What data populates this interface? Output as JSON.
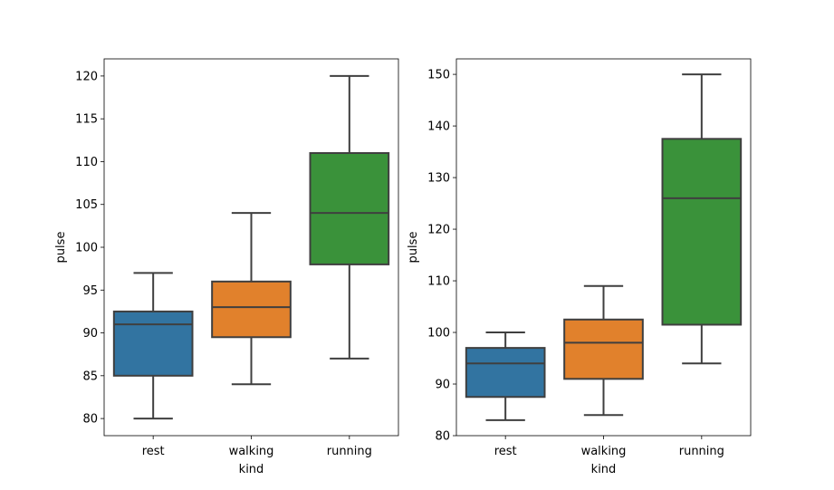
{
  "chart_data": [
    {
      "type": "box",
      "xlabel": "kind",
      "ylabel": "pulse",
      "categories": [
        "rest",
        "walking",
        "running"
      ],
      "colors": [
        "#3274a1",
        "#e1812c",
        "#3a923a"
      ],
      "ylim": [
        78,
        122
      ],
      "yticks": [
        80,
        85,
        90,
        95,
        100,
        105,
        110,
        115,
        120
      ],
      "boxes": [
        {
          "min": 80,
          "q1": 85,
          "median": 91,
          "q3": 92.5,
          "max": 97
        },
        {
          "min": 84,
          "q1": 89.5,
          "median": 93,
          "q3": 96,
          "max": 104
        },
        {
          "min": 87,
          "q1": 98,
          "median": 104,
          "q3": 111,
          "max": 120
        }
      ]
    },
    {
      "type": "box",
      "xlabel": "kind",
      "ylabel": "pulse",
      "categories": [
        "rest",
        "walking",
        "running"
      ],
      "colors": [
        "#3274a1",
        "#e1812c",
        "#3a923a"
      ],
      "ylim": [
        80,
        153
      ],
      "yticks": [
        80,
        90,
        100,
        110,
        120,
        130,
        140,
        150
      ],
      "boxes": [
        {
          "min": 83,
          "q1": 87.5,
          "median": 94,
          "q3": 97,
          "max": 100
        },
        {
          "min": 84,
          "q1": 91,
          "median": 98,
          "q3": 102.5,
          "max": 109
        },
        {
          "min": 94,
          "q1": 101.5,
          "median": 126,
          "q3": 137.5,
          "max": 150
        }
      ]
    }
  ]
}
